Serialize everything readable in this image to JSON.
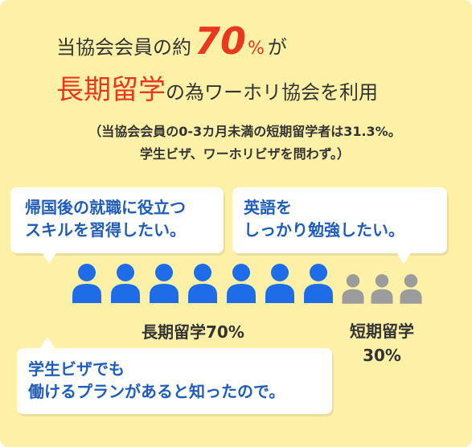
{
  "headline": {
    "line1_prefix": "当協会会員の約",
    "big_number": "70",
    "percent_sign": "%",
    "line1_suffix": "が",
    "line2_highlight": "長期留学",
    "line2_rest": "の為ワーホリ協会を利用"
  },
  "note": {
    "line1": "（当協会会員の0-3カ月未満の短期留学者は31.3%。",
    "line2": "学生ビザ、ワーホリビザを問わず。）"
  },
  "bubbles": {
    "skills": [
      "帰国後の就職に役立つ",
      "スキルを習得したい。"
    ],
    "english": [
      "英語を",
      "しっかり勉強したい。"
    ],
    "student_visa": [
      "学生ビザでも",
      "働けるプランがあると知ったので。"
    ]
  },
  "people_chart": {
    "long_term_count": 7,
    "short_term_count": 3,
    "long_label": "長期留学70%",
    "short_label_line1": "短期留学",
    "short_label_line2": "30%"
  },
  "colors": {
    "background": "#fdf1a8",
    "accent_red": "#e8381f",
    "bubble_text_blue": "#1f5db8",
    "long_term_icon": "#1e6ce8",
    "short_term_icon": "#9c9c9c"
  }
}
